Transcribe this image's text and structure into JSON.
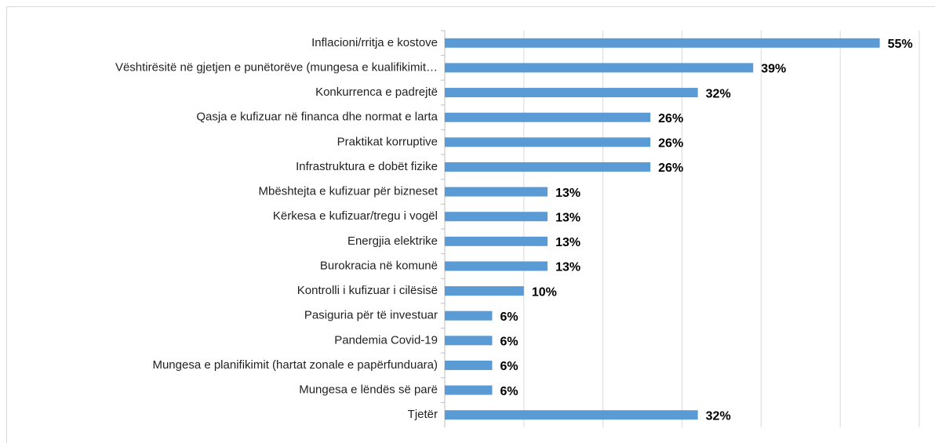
{
  "chart_data": {
    "type": "barh",
    "categories": [
      "Inflacioni/rritja e kostove",
      "Vështirësitë në gjetjen e punëtorëve (mungesa e kualifikimit…",
      "Konkurrenca e padrejtë",
      "Qasja e kufizuar në financa dhe normat e larta",
      "Praktikat korruptive",
      "Infrastruktura e dobët fizike",
      "Mbështejta e kufizuar për bizneset",
      "Kërkesa e kufizuar/tregu i vogël",
      "Energjia elektrike",
      "Burokracia në komunë",
      "Kontrolli i kufizuar i cilësisë",
      "Pasiguria për të investuar",
      "Pandemia Covid-19",
      "Mungesa e planifikimit (hartat zonale e papërfunduara)",
      "Mungesa e lëndës së parë",
      "Tjetër"
    ],
    "values": [
      55,
      39,
      32,
      26,
      26,
      26,
      13,
      13,
      13,
      13,
      10,
      6,
      6,
      6,
      6,
      32
    ],
    "value_labels": [
      "55%",
      "39%",
      "32%",
      "26%",
      "26%",
      "26%",
      "13%",
      "13%",
      "13%",
      "13%",
      "10%",
      "6%",
      "6%",
      "6%",
      "6%",
      "32%"
    ],
    "color": "#5b9bd5",
    "xlim": [
      0,
      60
    ],
    "xticks": [
      0,
      10,
      20,
      30,
      40,
      50,
      60
    ],
    "grid": true
  }
}
